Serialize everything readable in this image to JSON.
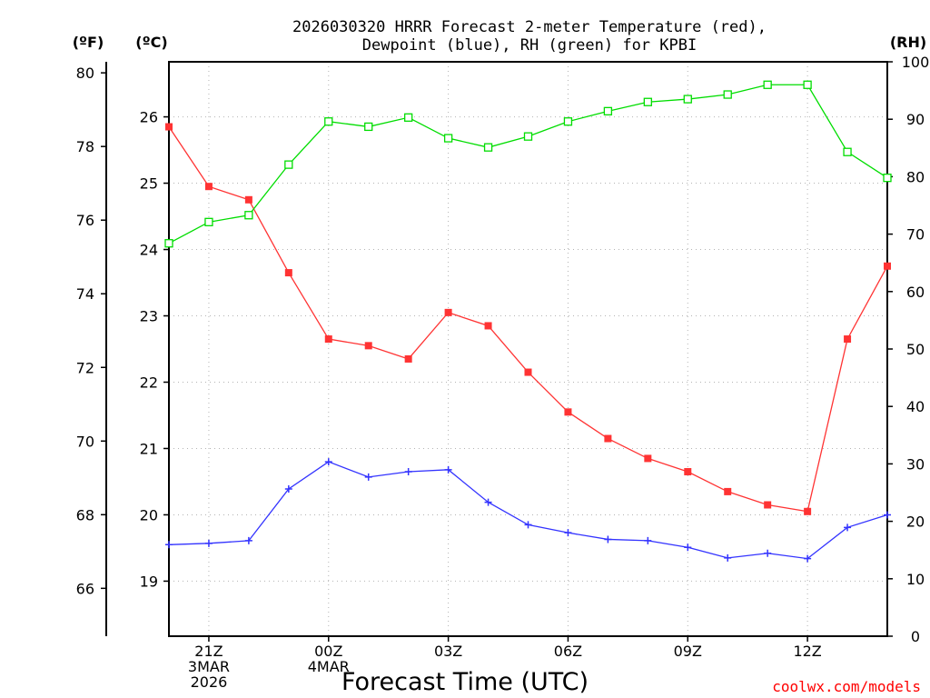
{
  "chart_data": {
    "type": "line",
    "title_lines": [
      "2026030320 HRRR Forecast 2-meter Temperature (red),",
      "Dewpoint (blue), RH (green) for KPBI"
    ],
    "xlabel": "Forecast Time (UTC)",
    "credit": "coolwx.com/models",
    "x_hours": [
      0,
      1,
      2,
      3,
      4,
      5,
      6,
      7,
      8,
      9,
      10,
      11,
      12,
      13,
      14,
      15,
      16,
      17,
      18
    ],
    "x_ticks": [
      {
        "hour": 1,
        "lines": [
          "21Z",
          "3MAR",
          "2026"
        ]
      },
      {
        "hour": 4,
        "lines": [
          "00Z",
          "4MAR"
        ]
      },
      {
        "hour": 7,
        "lines": [
          "03Z"
        ]
      },
      {
        "hour": 10,
        "lines": [
          "06Z"
        ]
      },
      {
        "hour": 13,
        "lines": [
          "09Z"
        ]
      },
      {
        "hour": 16,
        "lines": [
          "12Z"
        ]
      }
    ],
    "axes": {
      "fahrenheit": {
        "label": "(ºF)",
        "range": [
          64.7,
          80.3
        ],
        "ticks": [
          66,
          68,
          70,
          72,
          74,
          76,
          78,
          80
        ]
      },
      "celsius": {
        "label": "(ºC)",
        "range": [
          18.17,
          26.83
        ],
        "ticks": [
          19,
          20,
          21,
          22,
          23,
          24,
          25,
          26
        ]
      },
      "rh": {
        "label": "(RH)",
        "range": [
          0,
          100
        ],
        "ticks": [
          0,
          10,
          20,
          30,
          40,
          50,
          60,
          70,
          80,
          90,
          100
        ]
      }
    },
    "series": [
      {
        "name": "Temperature",
        "axis": "celsius",
        "color": "#ff3333",
        "marker": "filled-square",
        "values": [
          25.85,
          24.95,
          24.75,
          23.65,
          22.65,
          22.55,
          22.35,
          23.05,
          22.85,
          22.15,
          21.55,
          21.15,
          20.85,
          20.65,
          20.35,
          20.15,
          20.05,
          22.65,
          23.75
        ]
      },
      {
        "name": "Dewpoint",
        "axis": "celsius",
        "color": "#3333ff",
        "marker": "plus",
        "values": [
          19.55,
          19.57,
          19.61,
          20.39,
          20.8,
          20.57,
          20.65,
          20.68,
          20.19,
          19.85,
          19.73,
          19.63,
          19.61,
          19.51,
          19.35,
          19.42,
          19.34,
          19.81,
          20.0
        ]
      },
      {
        "name": "RH",
        "axis": "rh",
        "color": "#00dd00",
        "marker": "open-square",
        "values": [
          68.4,
          72.1,
          73.3,
          82.1,
          89.6,
          88.7,
          90.3,
          86.7,
          85.1,
          87.0,
          89.6,
          91.4,
          93.0,
          93.5,
          94.3,
          96.0,
          96.0,
          84.3,
          79.8
        ]
      }
    ]
  }
}
